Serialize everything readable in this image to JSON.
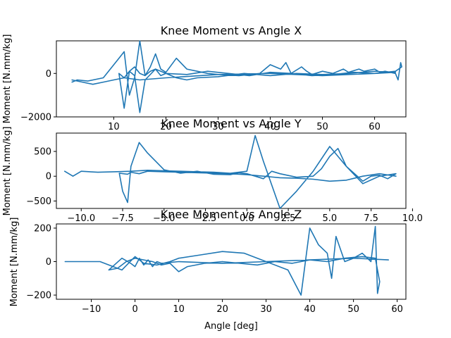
{
  "colors": {
    "series": "#1f77b4",
    "axes": "#000000",
    "background": "#ffffff"
  },
  "chart_data": [
    {
      "type": "line",
      "title": "Knee Moment vs Angle X",
      "xlabel": "",
      "ylabel": "Moment [N.mm/kg]",
      "xlim": [
        -1,
        66
      ],
      "ylim": [
        -2000,
        1500
      ],
      "xticks": [
        10,
        20,
        30,
        40,
        50,
        60
      ],
      "yticks": [
        -2000,
        0
      ],
      "grid": false,
      "series": [
        {
          "x": [
            2,
            3,
            5,
            8,
            9,
            11,
            12,
            13,
            14,
            15,
            16,
            17,
            18,
            19,
            20,
            22,
            24,
            26,
            28,
            30,
            34,
            38,
            40,
            42,
            43,
            44,
            46,
            47,
            48,
            50,
            52,
            54,
            55,
            57,
            58,
            60,
            61,
            62,
            64,
            64.5,
            65,
            65.2,
            64,
            60,
            56,
            52,
            48,
            44,
            40,
            36,
            32,
            28,
            24,
            20,
            18,
            16,
            15,
            14,
            13,
            12,
            11,
            12,
            13,
            14,
            15,
            16,
            17,
            18,
            19,
            20,
            22,
            24,
            26,
            30,
            35,
            40,
            45,
            50,
            55,
            60,
            64,
            60,
            50,
            40,
            30,
            20,
            15,
            12,
            10,
            8,
            6,
            4,
            2
          ],
          "y": [
            -400,
            -300,
            -350,
            -200,
            100,
            700,
            1000,
            -1000,
            -200,
            1500,
            -100,
            300,
            900,
            200,
            50,
            700,
            200,
            100,
            0,
            -50,
            -100,
            0,
            400,
            200,
            500,
            0,
            300,
            100,
            -50,
            100,
            0,
            200,
            50,
            200,
            100,
            200,
            50,
            100,
            0,
            -300,
            500,
            300,
            100,
            0,
            50,
            -50,
            -100,
            0,
            50,
            -100,
            0,
            100,
            -50,
            0,
            200,
            -300,
            -1800,
            -100,
            100,
            -1600,
            0,
            -200,
            100,
            300,
            0,
            -100,
            100,
            200,
            -100,
            0,
            -200,
            -300,
            -200,
            -150,
            0,
            -100,
            0,
            -50,
            0,
            100,
            50,
            0,
            -100,
            0,
            -50,
            -200,
            -300,
            -200,
            -300,
            -400,
            -500,
            -400,
            -300
          ]
        }
      ]
    },
    {
      "type": "line",
      "title": "Knee Moment vs Angle Y",
      "xlabel": "",
      "ylabel": "Moment [N.mm/kg]",
      "xlim": [
        -11.5,
        9.6
      ],
      "ylim": [
        -650,
        870
      ],
      "xticks": [
        -10.0,
        -7.5,
        -5.0,
        -2.5,
        0.0,
        2.5,
        5.0,
        7.5,
        10.0
      ],
      "yticks": [
        -500,
        0,
        500
      ],
      "grid": false,
      "series": [
        {
          "x": [
            -11,
            -10.5,
            -10,
            -9,
            -8,
            -7,
            -6,
            -5,
            -4,
            -3,
            -2,
            -1,
            0,
            0.5,
            1,
            2,
            3,
            4,
            5,
            6,
            7,
            8,
            9,
            8.5,
            8,
            7.5,
            7,
            6,
            5.5,
            5,
            4.5,
            4,
            3,
            2,
            1.5,
            1,
            0.5,
            0,
            -0.5,
            -1,
            -2,
            -3,
            -4,
            -5,
            -6,
            -6.5,
            -7,
            -7.2,
            -7.5,
            -7.7,
            -7.2,
            -7,
            -6.5,
            -6,
            -5,
            -4,
            -3,
            -2,
            -1,
            0,
            1,
            2,
            3,
            4,
            5,
            6,
            7,
            8,
            9
          ],
          "y": [
            100,
            0,
            100,
            80,
            90,
            100,
            120,
            110,
            100,
            90,
            80,
            60,
            100,
            820,
            300,
            -650,
            -300,
            100,
            600,
            200,
            -150,
            0,
            50,
            -50,
            20,
            0,
            -100,
            200,
            560,
            400,
            150,
            0,
            -20,
            50,
            100,
            -50,
            0,
            50,
            70,
            30,
            40,
            100,
            60,
            130,
            470,
            680,
            200,
            -530,
            -300,
            60,
            40,
            80,
            50,
            100,
            90,
            80,
            70,
            60,
            50,
            30,
            0,
            -30,
            -40,
            -60,
            -100,
            -80,
            0,
            50,
            0
          ]
        }
      ]
    },
    {
      "type": "line",
      "title": "Knee Moment vs Angle Z",
      "xlabel": "Angle [deg]",
      "ylabel": "Moment [N.mm/kg]",
      "xlim": [
        -18,
        62
      ],
      "ylim": [
        -225,
        225
      ],
      "xticks": [
        -10,
        0,
        10,
        20,
        30,
        40,
        50,
        60
      ],
      "yticks": [
        -200,
        0,
        200
      ],
      "grid": false,
      "series": [
        {
          "x": [
            -16,
            -8,
            -3,
            0,
            2,
            5,
            8,
            10,
            15,
            20,
            25,
            30,
            35,
            37,
            38,
            40,
            42,
            44,
            45,
            46,
            48,
            50,
            52,
            54,
            55,
            55.5,
            56,
            55,
            52,
            48,
            44,
            40,
            36,
            32,
            28,
            24,
            20,
            16,
            12,
            10,
            8,
            6,
            4,
            2,
            0,
            -2,
            -4,
            -6,
            -3,
            -1,
            0,
            1,
            2,
            3,
            4,
            5,
            6,
            10,
            20,
            30,
            40,
            50,
            58
          ],
          "y": [
            0,
            0,
            -50,
            30,
            -10,
            -20,
            0,
            20,
            40,
            60,
            50,
            0,
            -50,
            -150,
            -200,
            200,
            100,
            50,
            -100,
            150,
            0,
            20,
            50,
            0,
            210,
            -190,
            -120,
            20,
            30,
            20,
            0,
            10,
            -10,
            0,
            -20,
            -10,
            0,
            -10,
            -30,
            -60,
            -10,
            -20,
            0,
            10,
            20,
            0,
            -40,
            -50,
            20,
            -10,
            -30,
            20,
            -20,
            10,
            -30,
            0,
            -10,
            0,
            -10,
            0,
            10,
            20,
            10
          ]
        }
      ]
    }
  ]
}
